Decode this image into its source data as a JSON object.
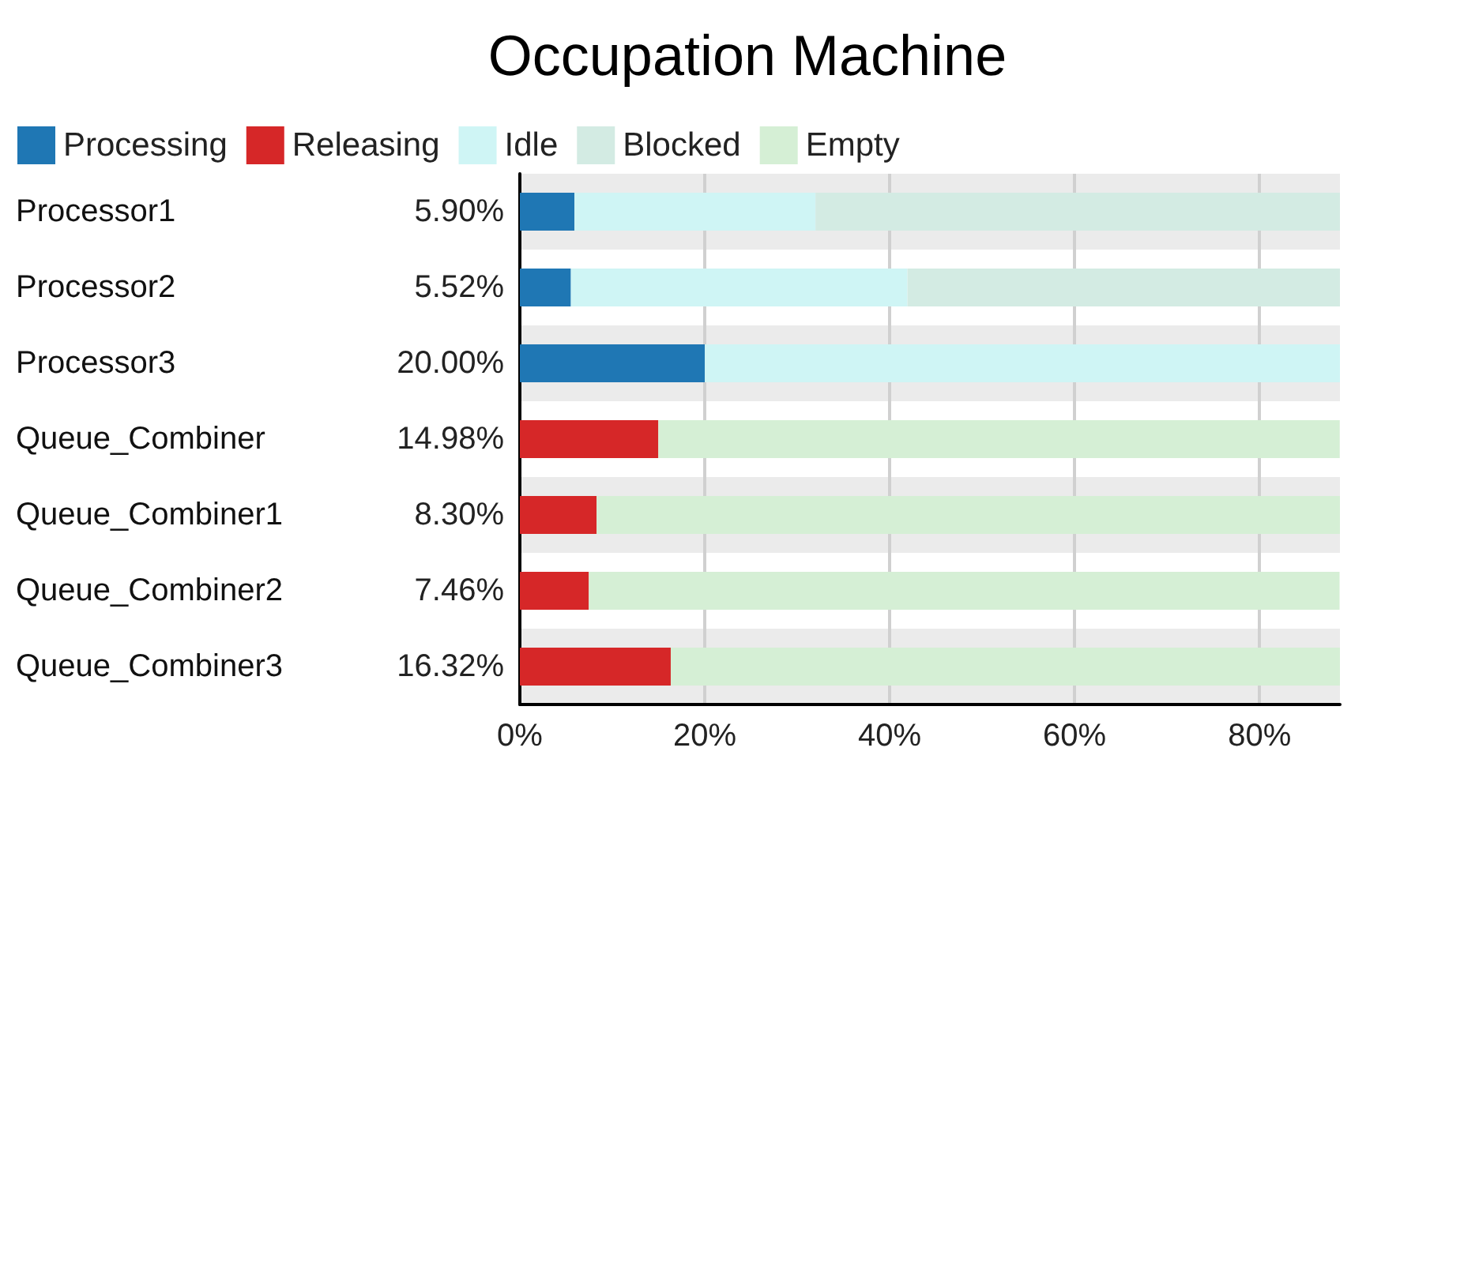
{
  "chart_data": {
    "type": "bar",
    "orientation": "horizontal",
    "stacked": true,
    "title": "Occupation Machine",
    "categories": [
      "Processor1",
      "Processor2",
      "Processor3",
      "Queue_Combiner",
      "Queue_Combiner1",
      "Queue_Combiner2",
      "Queue_Combiner3"
    ],
    "series": [
      {
        "name": "Processing",
        "color": "#1f77b4",
        "values": [
          5.9,
          5.52,
          20.0,
          0,
          0,
          0,
          0
        ],
        "value_labels": [
          "5.90%",
          "5.52%",
          "20.00%",
          null,
          null,
          null,
          null
        ]
      },
      {
        "name": "Releasing",
        "color": "#d62728",
        "values": [
          0,
          0,
          0,
          14.98,
          8.3,
          7.46,
          16.32
        ],
        "value_labels": [
          null,
          null,
          null,
          "14.98%",
          "8.30%",
          "7.46%",
          "16.32%"
        ]
      },
      {
        "name": "Idle",
        "color": "#cff5f5",
        "values": [
          26.1,
          36.4,
          68.7,
          0,
          0,
          0,
          0
        ]
      },
      {
        "name": "Blocked",
        "color": "#d3ebe3",
        "values": [
          56.7,
          46.8,
          0,
          0,
          0,
          0,
          0
        ]
      },
      {
        "name": "Empty",
        "color": "#d5efd5",
        "values": [
          0,
          0,
          0,
          73.7,
          80.4,
          81.2,
          72.4
        ]
      }
    ],
    "xlim": [
      0,
      88.7
    ],
    "xticks": [
      {
        "value": 0,
        "label": "0%"
      },
      {
        "value": 20,
        "label": "20%"
      },
      {
        "value": 40,
        "label": "40%"
      },
      {
        "value": 60,
        "label": "60%"
      },
      {
        "value": 80,
        "label": "80%"
      }
    ],
    "grid": "x",
    "legend": "top left"
  }
}
